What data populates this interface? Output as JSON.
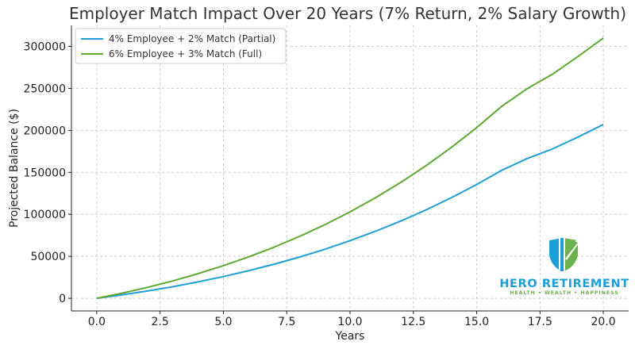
{
  "chart_data": {
    "type": "line",
    "title": "Employer Match Impact Over 20 Years (7% Return, 2% Salary Growth)",
    "xlabel": "Years",
    "ylabel": "Projected Balance ($)",
    "xlim": [
      -1,
      21
    ],
    "ylim": [
      -15000,
      325000
    ],
    "xticks": [
      0.0,
      2.5,
      5.0,
      7.5,
      10.0,
      12.5,
      15.0,
      17.5,
      20.0
    ],
    "xtick_labels": [
      "0.0",
      "2.5",
      "5.0",
      "7.5",
      "10.0",
      "12.5",
      "15.0",
      "17.5",
      "20.0"
    ],
    "yticks": [
      0,
      50000,
      100000,
      150000,
      200000,
      250000,
      300000
    ],
    "ytick_labels": [
      "0",
      "50000",
      "100000",
      "150000",
      "200000",
      "250000",
      "300000"
    ],
    "grid": true,
    "legend_position": "top-left",
    "x": [
      0,
      1,
      2,
      3,
      4,
      5,
      6,
      7,
      8,
      9,
      10,
      11,
      12,
      13,
      14,
      15,
      16,
      17,
      18,
      19,
      20
    ],
    "series": [
      {
        "name": "4% Employee + 2% Match (Partial)",
        "color": "#1f9fd5",
        "values": [
          0,
          4100,
          8700,
          13800,
          19600,
          25900,
          32900,
          40600,
          49100,
          58400,
          68600,
          79800,
          92000,
          105300,
          119800,
          135500,
          152600,
          166500,
          178000,
          192000,
          207000
        ]
      },
      {
        "name": "6% Employee + 3% Match (Full)",
        "color": "#5fa833",
        "values": [
          0,
          6150,
          13050,
          20700,
          29400,
          38850,
          49350,
          60900,
          73650,
          87600,
          102900,
          119700,
          138000,
          157950,
          179700,
          203250,
          228900,
          249750,
          267000,
          288000,
          310000
        ]
      }
    ]
  },
  "branding": {
    "name": "HERO RETIREMENT",
    "tagline": "HEALTH • WEALTH • HAPPINESS",
    "primary_color": "#1a9fd6",
    "secondary_color": "#6ab24c"
  }
}
